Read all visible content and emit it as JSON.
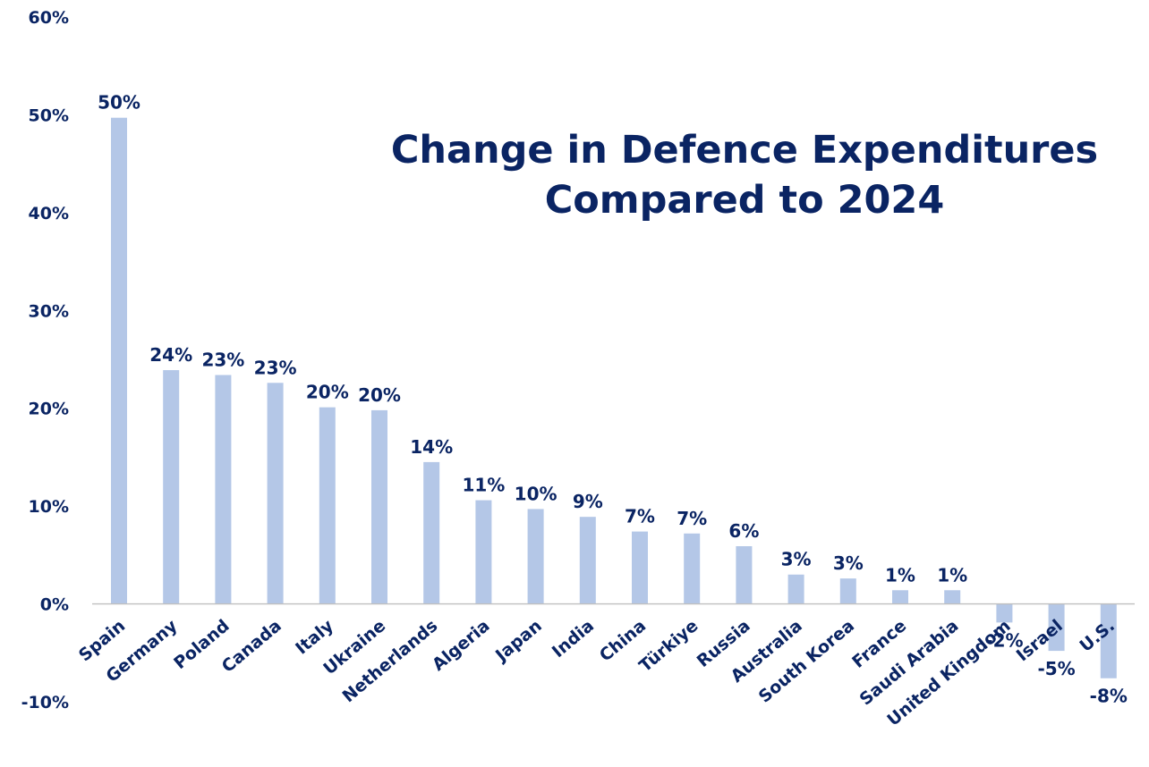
{
  "chart_data": {
    "type": "bar",
    "title_lines": [
      "Change in Defence Expenditures",
      "Compared to 2024"
    ],
    "categories": [
      "Spain",
      "Germany",
      "Poland",
      "Canada",
      "Italy",
      "Ukraine",
      "Netherlands",
      "Algeria",
      "Japan",
      "India",
      "China",
      "Türkiye",
      "Russia",
      "Australia",
      "South Korea",
      "France",
      "Saudi Arabia",
      "United Kingdom",
      "Israel",
      "U.S."
    ],
    "values": [
      49.7,
      23.9,
      23.4,
      22.6,
      20.1,
      19.8,
      14.5,
      10.6,
      9.7,
      8.9,
      7.4,
      7.2,
      5.9,
      3.0,
      2.6,
      1.4,
      1.4,
      -1.9,
      -4.8,
      -7.6
    ],
    "data_labels": [
      "50%",
      "24%",
      "23%",
      "23%",
      "20%",
      "20%",
      "14%",
      "11%",
      "10%",
      "9%",
      "7%",
      "7%",
      "6%",
      "3%",
      "3%",
      "1%",
      "1%",
      "-2%",
      "-5%",
      "-8%"
    ],
    "ylim": [
      -10,
      60
    ],
    "yticks": [
      -10,
      0,
      10,
      20,
      30,
      40,
      50,
      60
    ],
    "ytick_labels": [
      "-10%",
      "0%",
      "10%",
      "20%",
      "30%",
      "40%",
      "50%",
      "60%"
    ],
    "xlabel": "",
    "ylabel": "",
    "grid": false,
    "legend": "none",
    "colors": {
      "bar": "#b4c7e7",
      "text": "#0a2463",
      "axis": "#bfbfbf"
    }
  }
}
